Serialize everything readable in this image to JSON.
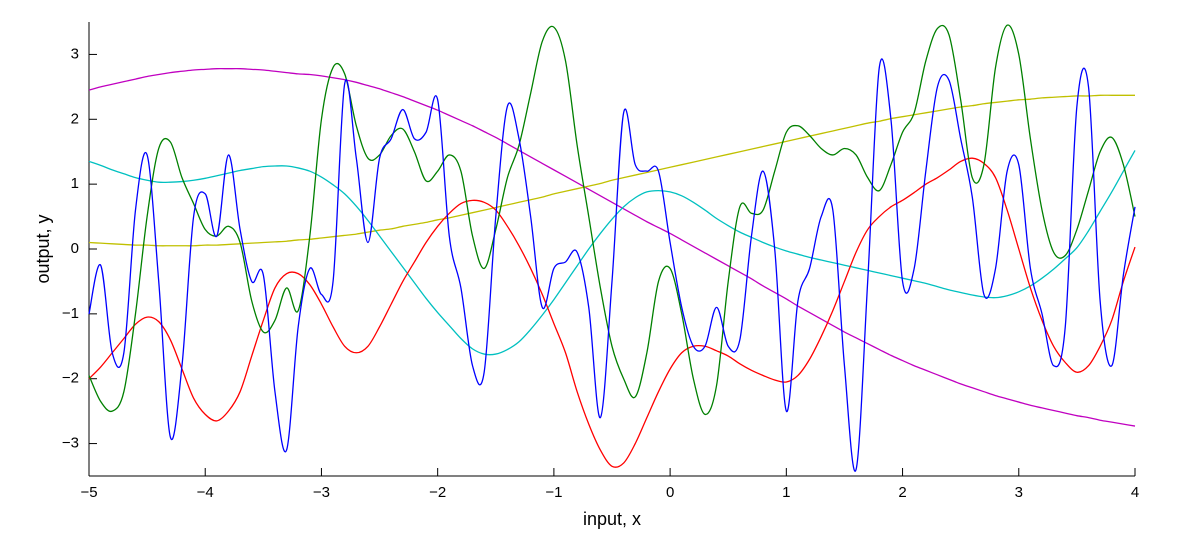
{
  "chart_data": {
    "type": "line",
    "x_label": "input, x",
    "y_label": "output, y",
    "xlim": [
      -5,
      4
    ],
    "ylim": [
      -3.5,
      3.5
    ],
    "xticks": [
      {
        "value": -5,
        "label": "−5"
      },
      {
        "value": -4,
        "label": "−4"
      },
      {
        "value": -3,
        "label": "−3"
      },
      {
        "value": -2,
        "label": "−2"
      },
      {
        "value": -1,
        "label": "−1"
      },
      0,
      1,
      2,
      3,
      4
    ],
    "yticks": [
      {
        "value": -3,
        "label": "−3"
      },
      {
        "value": -2,
        "label": "−2"
      },
      {
        "value": -1,
        "label": "−1"
      },
      0,
      1,
      2,
      3
    ],
    "x": [
      -5,
      -4.9,
      -4.8,
      -4.7,
      -4.6,
      -4.5,
      -4.4,
      -4.3,
      -4.2,
      -4.1,
      -4,
      -3.9,
      -3.8,
      -3.7,
      -3.6,
      -3.5,
      -3.4,
      -3.3,
      -3.2,
      -3.1,
      -3,
      -2.9,
      -2.8,
      -2.7,
      -2.6,
      -2.5,
      -2.4,
      -2.3,
      -2.2,
      -2.1,
      -2,
      -1.9,
      -1.8,
      -1.7,
      -1.6,
      -1.5,
      -1.4,
      -1.3,
      -1.2,
      -1.1,
      -1,
      -0.9,
      -0.8,
      -0.7,
      -0.6,
      -0.5,
      -0.4,
      -0.3,
      -0.2,
      -0.1,
      0,
      0.1,
      0.2,
      0.3,
      0.4,
      0.5,
      0.6,
      0.7,
      0.8,
      0.9,
      1,
      1.1,
      1.2,
      1.3,
      1.4,
      1.5,
      1.6,
      1.7,
      1.8,
      1.9,
      2,
      2.1,
      2.2,
      2.3,
      2.4,
      2.5,
      2.6,
      2.7,
      2.8,
      2.9,
      3,
      3.1,
      3.2,
      3.3,
      3.4,
      3.5,
      3.6,
      3.7,
      3.8,
      3.9,
      4
    ],
    "series": [
      {
        "color": "#c000c0",
        "values": [
          2.45,
          2.5,
          2.54,
          2.58,
          2.62,
          2.66,
          2.69,
          2.72,
          2.74,
          2.76,
          2.77,
          2.78,
          2.78,
          2.78,
          2.77,
          2.76,
          2.74,
          2.72,
          2.7,
          2.69,
          2.67,
          2.64,
          2.61,
          2.57,
          2.52,
          2.47,
          2.41,
          2.35,
          2.28,
          2.21,
          2.14,
          2.06,
          1.98,
          1.9,
          1.81,
          1.72,
          1.62,
          1.52,
          1.42,
          1.32,
          1.22,
          1.12,
          1.02,
          0.92,
          0.82,
          0.72,
          0.62,
          0.52,
          0.42,
          0.33,
          0.24,
          0.14,
          0.04,
          -0.06,
          -0.16,
          -0.26,
          -0.36,
          -0.46,
          -0.57,
          -0.67,
          -0.77,
          -0.88,
          -0.98,
          -1.08,
          -1.18,
          -1.28,
          -1.37,
          -1.46,
          -1.55,
          -1.64,
          -1.72,
          -1.8,
          -1.87,
          -1.94,
          -2.01,
          -2.08,
          -2.14,
          -2.2,
          -2.26,
          -2.31,
          -2.36,
          -2.41,
          -2.45,
          -2.49,
          -2.53,
          -2.57,
          -2.6,
          -2.64,
          -2.67,
          -2.7,
          -2.73
        ]
      },
      {
        "color": "#c0c000",
        "values": [
          0.1,
          0.09,
          0.08,
          0.07,
          0.06,
          0.06,
          0.05,
          0.05,
          0.05,
          0.05,
          0.06,
          0.06,
          0.07,
          0.08,
          0.09,
          0.1,
          0.11,
          0.12,
          0.14,
          0.15,
          0.17,
          0.19,
          0.21,
          0.23,
          0.26,
          0.29,
          0.31,
          0.35,
          0.38,
          0.41,
          0.45,
          0.48,
          0.52,
          0.56,
          0.6,
          0.64,
          0.68,
          0.72,
          0.76,
          0.8,
          0.85,
          0.89,
          0.93,
          0.97,
          1.01,
          1.06,
          1.1,
          1.14,
          1.18,
          1.22,
          1.26,
          1.3,
          1.34,
          1.38,
          1.42,
          1.46,
          1.5,
          1.54,
          1.58,
          1.62,
          1.66,
          1.7,
          1.74,
          1.78,
          1.82,
          1.86,
          1.9,
          1.94,
          1.97,
          2.01,
          2.04,
          2.07,
          2.1,
          2.13,
          2.16,
          2.19,
          2.21,
          2.24,
          2.26,
          2.28,
          2.3,
          2.31,
          2.33,
          2.34,
          2.35,
          2.36,
          2.36,
          2.37,
          2.37,
          2.37,
          2.37
        ]
      },
      {
        "color": "#00c0c0",
        "values": [
          1.35,
          1.29,
          1.22,
          1.16,
          1.1,
          1.06,
          1.03,
          1.03,
          1.04,
          1.06,
          1.09,
          1.13,
          1.17,
          1.21,
          1.24,
          1.27,
          1.28,
          1.28,
          1.25,
          1.2,
          1.11,
          0.99,
          0.85,
          0.66,
          0.44,
          0.2,
          -0.04,
          -0.28,
          -0.52,
          -0.76,
          -0.98,
          -1.18,
          -1.38,
          -1.54,
          -1.62,
          -1.62,
          -1.55,
          -1.43,
          -1.24,
          -1.02,
          -0.78,
          -0.52,
          -0.26,
          0,
          0.24,
          0.46,
          0.65,
          0.79,
          0.88,
          0.9,
          0.88,
          0.82,
          0.72,
          0.6,
          0.47,
          0.36,
          0.26,
          0.18,
          0.1,
          0.03,
          -0.03,
          -0.08,
          -0.13,
          -0.17,
          -0.21,
          -0.25,
          -0.29,
          -0.33,
          -0.37,
          -0.41,
          -0.45,
          -0.49,
          -0.53,
          -0.58,
          -0.63,
          -0.67,
          -0.71,
          -0.74,
          -0.75,
          -0.72,
          -0.66,
          -0.57,
          -0.45,
          -0.31,
          -0.15,
          0.02,
          0.28,
          0.58,
          0.88,
          1.2,
          1.52
        ]
      },
      {
        "color": "#ff0000",
        "values": [
          -2,
          -1.82,
          -1.6,
          -1.38,
          -1.16,
          -1.05,
          -1.12,
          -1.4,
          -1.85,
          -2.3,
          -2.55,
          -2.65,
          -2.5,
          -2.2,
          -1.65,
          -1.1,
          -0.6,
          -0.38,
          -0.38,
          -0.55,
          -0.85,
          -1.2,
          -1.5,
          -1.6,
          -1.5,
          -1.2,
          -0.85,
          -0.5,
          -0.2,
          0.1,
          0.35,
          0.55,
          0.7,
          0.75,
          0.72,
          0.6,
          0.35,
          0.05,
          -0.3,
          -0.7,
          -1.15,
          -1.6,
          -2.2,
          -2.7,
          -3.1,
          -3.35,
          -3.3,
          -3,
          -2.6,
          -2.2,
          -1.85,
          -1.6,
          -1.5,
          -1.5,
          -1.57,
          -1.65,
          -1.77,
          -1.87,
          -1.95,
          -2.02,
          -2.05,
          -1.95,
          -1.7,
          -1.35,
          -0.95,
          -0.5,
          -0.05,
          0.3,
          0.5,
          0.65,
          0.75,
          0.87,
          1,
          1.1,
          1.22,
          1.35,
          1.4,
          1.32,
          1.1,
          0.6,
          0,
          -0.6,
          -1.1,
          -1.5,
          -1.75,
          -1.9,
          -1.8,
          -1.5,
          -1.1,
          -0.5,
          0.03
        ]
      },
      {
        "color": "#008000",
        "values": [
          -1.95,
          -2.35,
          -2.5,
          -2.2,
          -1,
          0.5,
          1.55,
          1.65,
          1.1,
          0.7,
          0.3,
          0.2,
          0.35,
          0.1,
          -0.8,
          -1.28,
          -1.1,
          -0.6,
          -0.95,
          0.2,
          2,
          2.8,
          2.7,
          1.9,
          1.4,
          1.45,
          1.75,
          1.85,
          1.5,
          1.05,
          1.2,
          1.45,
          1.2,
          0.2,
          -0.3,
          0.3,
          1.1,
          1.6,
          2.4,
          3.2,
          3.42,
          2.9,
          1.6,
          0.5,
          -0.6,
          -1.5,
          -2,
          -2.28,
          -1.6,
          -0.5,
          -0.3,
          -1,
          -2,
          -2.55,
          -2.1,
          -0.5,
          0.65,
          0.55,
          0.6,
          1.2,
          1.8,
          1.9,
          1.75,
          1.55,
          1.45,
          1.55,
          1.45,
          1.1,
          0.9,
          1.3,
          1.8,
          2.1,
          2.9,
          3.4,
          3.3,
          2.3,
          1.1,
          1.3,
          2.8,
          3.45,
          3,
          1.7,
          0.6,
          -0.05,
          -0.1,
          0.3,
          0.9,
          1.5,
          1.72,
          1.3,
          0.5
        ]
      },
      {
        "color": "#0000ff",
        "values": [
          -1,
          -0.25,
          -1.6,
          -1.6,
          0.6,
          1.45,
          -0.5,
          -2.9,
          -1.8,
          0.5,
          0.85,
          0.2,
          1.45,
          0.3,
          -0.5,
          -0.4,
          -2.2,
          -3.1,
          -1.2,
          -0.3,
          -0.7,
          -0.5,
          2.55,
          1.4,
          0.1,
          1.4,
          1.7,
          2.15,
          1.7,
          1.8,
          2.3,
          0.2,
          -0.6,
          -1.8,
          -1.9,
          0.5,
          2.2,
          1.7,
          0.5,
          -0.9,
          -0.3,
          -0.2,
          -0.05,
          -0.9,
          -2.6,
          -0.5,
          2.1,
          1.3,
          1.2,
          1.2,
          0.1,
          -0.9,
          -1.5,
          -1.5,
          -0.9,
          -1.5,
          -1.4,
          0.2,
          1.2,
          0,
          -2.5,
          -0.8,
          -0.3,
          0.5,
          0.6,
          -1.8,
          -3.4,
          -0.5,
          2.8,
          2,
          -0.5,
          -0.3,
          1.2,
          2.5,
          2.6,
          1.7,
          0.8,
          -0.7,
          -0.3,
          1.2,
          1.3,
          -0.3,
          -1,
          -1.8,
          -1.2,
          2.2,
          2.5,
          -0.8,
          -1.8,
          -0.4,
          0.65
        ]
      }
    ]
  }
}
